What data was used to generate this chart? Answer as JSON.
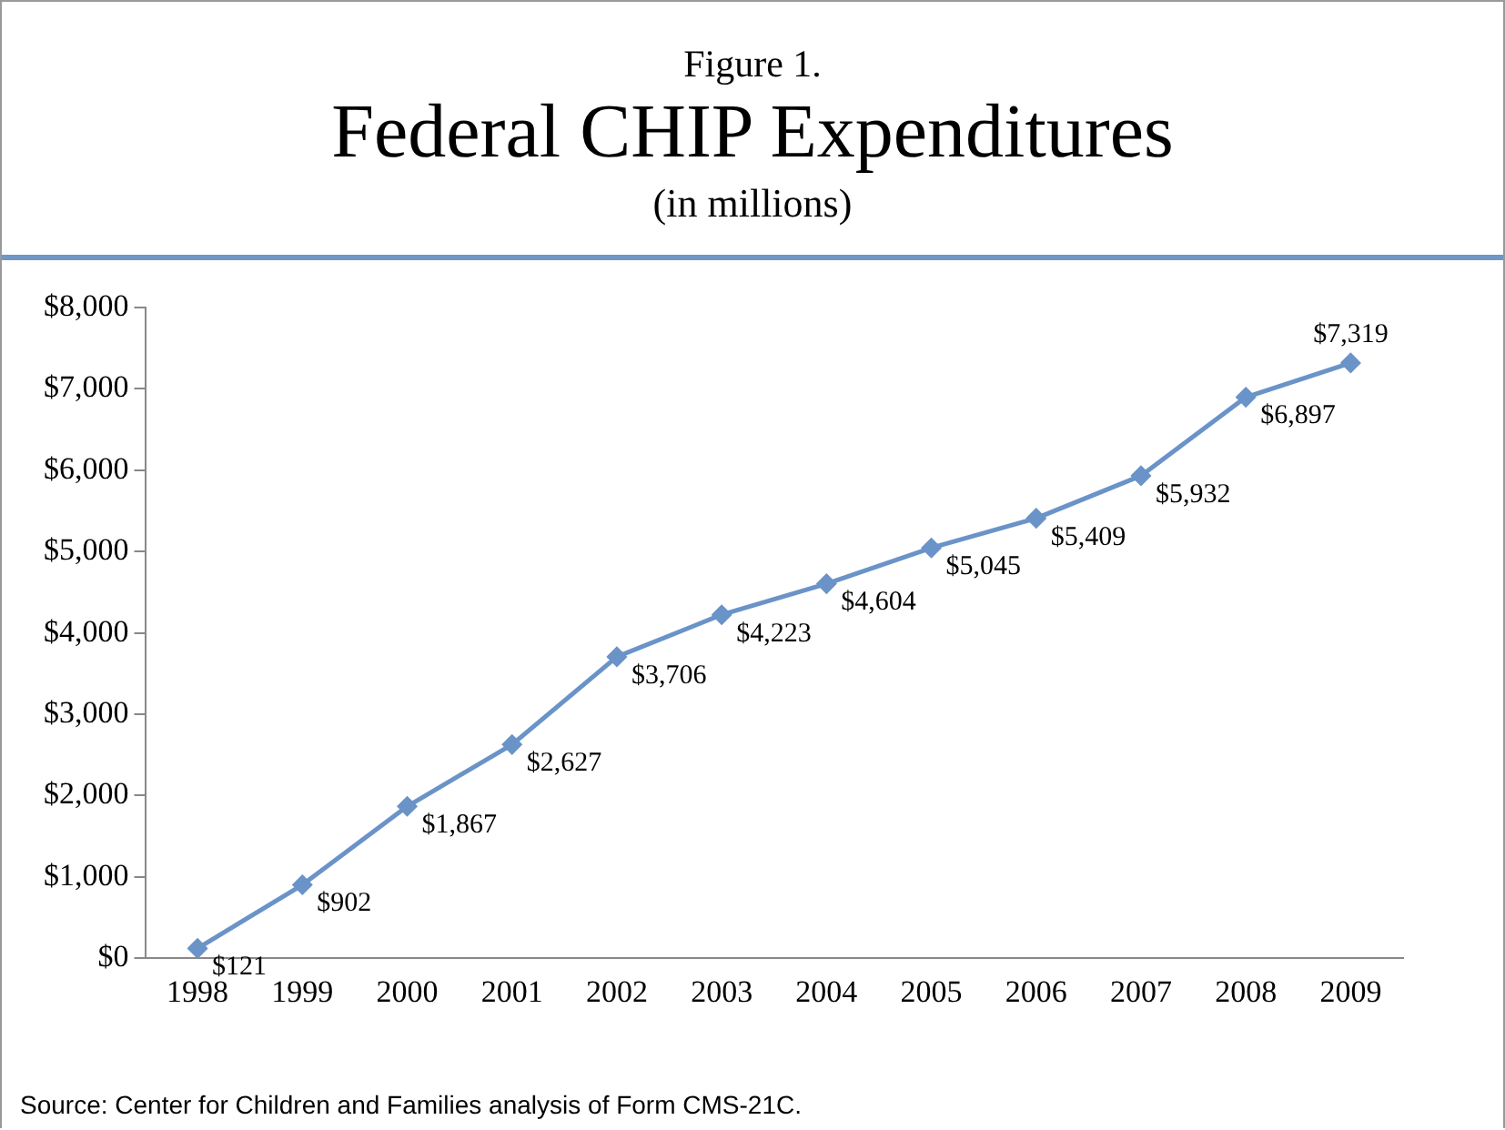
{
  "chart_data": {
    "type": "line",
    "title": "Federal CHIP Expenditures",
    "subtitle": "(in millions)",
    "annotations": [
      "Figure 1.",
      "Source: Center for Children and Families analysis of Form CMS-21C."
    ],
    "categories": [
      "1998",
      "1999",
      "2000",
      "2001",
      "2002",
      "2003",
      "2004",
      "2005",
      "2006",
      "2007",
      "2008",
      "2009"
    ],
    "series": [
      {
        "color": "#6a93c8",
        "values": [
          121,
          902,
          1867,
          2627,
          3706,
          4223,
          4604,
          5045,
          5409,
          5932,
          6897,
          7319
        ],
        "value_labels": [
          "$121",
          "$902",
          "$1,867",
          "$2,627",
          "$3,706",
          "$4,223",
          "$4,604",
          "$5,045",
          "$5,409",
          "$5,932",
          "$6,897",
          "$7,319"
        ]
      }
    ],
    "ylim": [
      0,
      8000
    ],
    "yticks": [
      {
        "value": 0,
        "label": "$0"
      },
      {
        "value": 1000,
        "label": "$1,000"
      },
      {
        "value": 2000,
        "label": "$2,000"
      },
      {
        "value": 3000,
        "label": "$3,000"
      },
      {
        "value": 4000,
        "label": "$4,000"
      },
      {
        "value": 5000,
        "label": "$5,000"
      },
      {
        "value": 6000,
        "label": "$6,000"
      },
      {
        "value": 7000,
        "label": "$7,000"
      },
      {
        "value": 8000,
        "label": "$8,000"
      }
    ],
    "grid": false,
    "legend": false,
    "marker": "diamond",
    "line_style": "solid"
  }
}
